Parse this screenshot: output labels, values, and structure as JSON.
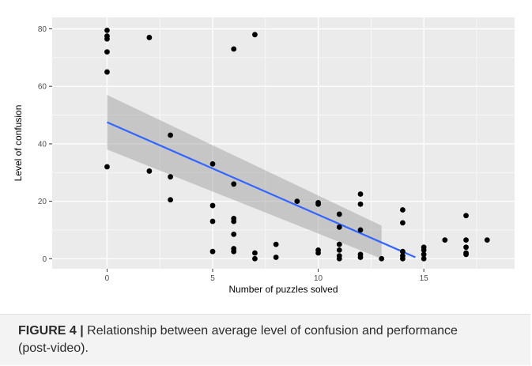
{
  "chart_data": {
    "type": "scatter",
    "xlabel": "Number of puzzles solved",
    "ylabel": "Level of confusion",
    "xlim": [
      -2.6,
      19.3
    ],
    "ylim": [
      -3.5,
      84
    ],
    "xticks": [
      0,
      5,
      10,
      15
    ],
    "yticks": [
      0,
      20,
      40,
      60,
      80
    ],
    "grid": true,
    "legend": "none",
    "points": [
      [
        0,
        79.5
      ],
      [
        0,
        77.5
      ],
      [
        0,
        76.5
      ],
      [
        0,
        72
      ],
      [
        0,
        65
      ],
      [
        0,
        32
      ],
      [
        2,
        77
      ],
      [
        2,
        30.5
      ],
      [
        3,
        43
      ],
      [
        3,
        28.5
      ],
      [
        3,
        20.5
      ],
      [
        5,
        33
      ],
      [
        5,
        18.5
      ],
      [
        5,
        13
      ],
      [
        5,
        2.5
      ],
      [
        6,
        73
      ],
      [
        6,
        26
      ],
      [
        6,
        14
      ],
      [
        6,
        13
      ],
      [
        6,
        8.5
      ],
      [
        6,
        3.5
      ],
      [
        6,
        2.5
      ],
      [
        7,
        78
      ],
      [
        7,
        2
      ],
      [
        7,
        0
      ],
      [
        8,
        5
      ],
      [
        8,
        0.5
      ],
      [
        9,
        20
      ],
      [
        10,
        19.5
      ],
      [
        10,
        19
      ],
      [
        10,
        3
      ],
      [
        10,
        2
      ],
      [
        11,
        15.5
      ],
      [
        11,
        11
      ],
      [
        11,
        5
      ],
      [
        11,
        3
      ],
      [
        11,
        1
      ],
      [
        11,
        0
      ],
      [
        12,
        22.5
      ],
      [
        12,
        19
      ],
      [
        12,
        10
      ],
      [
        12,
        1.5
      ],
      [
        12,
        0.5
      ],
      [
        13,
        0
      ],
      [
        14,
        17
      ],
      [
        14,
        12.5
      ],
      [
        14,
        2.5
      ],
      [
        14,
        1
      ],
      [
        14,
        0
      ],
      [
        15,
        4
      ],
      [
        15,
        3
      ],
      [
        15,
        1.5
      ],
      [
        15,
        0
      ],
      [
        16,
        6.5
      ],
      [
        17,
        15
      ],
      [
        17,
        6.5
      ],
      [
        17,
        4
      ],
      [
        17,
        2
      ],
      [
        17,
        1.5
      ],
      [
        18,
        6.5
      ]
    ],
    "regression": {
      "x": [
        0,
        14.6
      ],
      "y": [
        47.5,
        0.5
      ],
      "ci_upper": [
        [
          0,
          57
        ],
        [
          13,
          11.5
        ]
      ],
      "ci_lower": [
        [
          0,
          38
        ],
        [
          13,
          0
        ]
      ]
    },
    "colors": {
      "panel": "#ebebeb",
      "grid": "#ffffff",
      "point": "#000000",
      "line": "#3366ff",
      "ribbon": "#999999"
    }
  },
  "caption": {
    "label": "FIGURE 4",
    "separator": "|",
    "text": " Relationship between average level of confusion and performance (post-video)."
  }
}
